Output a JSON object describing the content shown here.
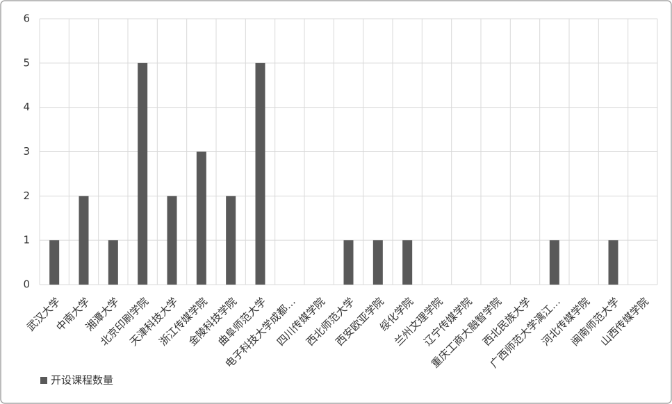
{
  "chart_data": {
    "type": "bar",
    "categories": [
      "武汉大学",
      "中南大学",
      "湘潭大学",
      "北京印刷学院",
      "天津科技大学",
      "浙江传媒学院",
      "金陵科技学院",
      "曲阜师范大学",
      "电子科技大学成都…",
      "四川传媒学院",
      "西北师范大学",
      "西安欧亚学院",
      "绥化学院",
      "兰州文理学院",
      "辽宁传媒学院",
      "重庆工商大融智学院",
      "西北民族大学",
      "广西师范大学漓江…",
      "河北传媒学院",
      "闽南师范大学",
      "山西传媒学院"
    ],
    "series": [
      {
        "name": "开设课程数量",
        "color": "#595959",
        "values": [
          1,
          2,
          1,
          5,
          2,
          3,
          2,
          5,
          0,
          0,
          1,
          1,
          1,
          0,
          0,
          0,
          0,
          1,
          0,
          1,
          0
        ]
      }
    ],
    "ylim": [
      0,
      6
    ],
    "yticks": [
      0,
      1,
      2,
      3,
      4,
      5,
      6
    ],
    "grid": true,
    "legend": "bottom-left"
  }
}
